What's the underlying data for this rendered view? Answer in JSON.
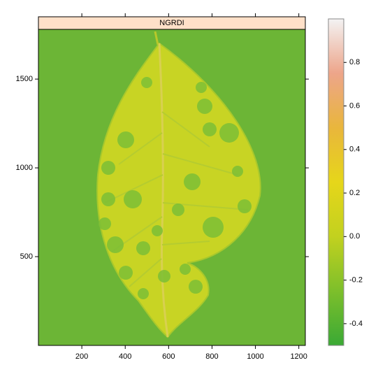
{
  "chart_data": {
    "type": "raster",
    "title": "NGRDI",
    "xlim": [
      0,
      1230
    ],
    "xticks": [
      200,
      400,
      600,
      800,
      1000,
      1200
    ],
    "ylim": [
      0,
      1780
    ],
    "yticks": [
      500,
      1000,
      1500
    ],
    "background_color": "#6cb536",
    "strip_color": "#ffe0c8",
    "colorbar": {
      "zlim": [
        -0.5,
        1.0
      ],
      "ticks": [
        -0.4,
        -0.2,
        {
          "value": 0,
          "label": "0.0"
        },
        0.2,
        0.4,
        0.6,
        0.8
      ],
      "colors": [
        "#3aa935",
        "#7dbf2b",
        "#c2d11f",
        "#e6d61a",
        "#e9b63c",
        "#eda58a",
        "#f3f3f3"
      ]
    }
  }
}
